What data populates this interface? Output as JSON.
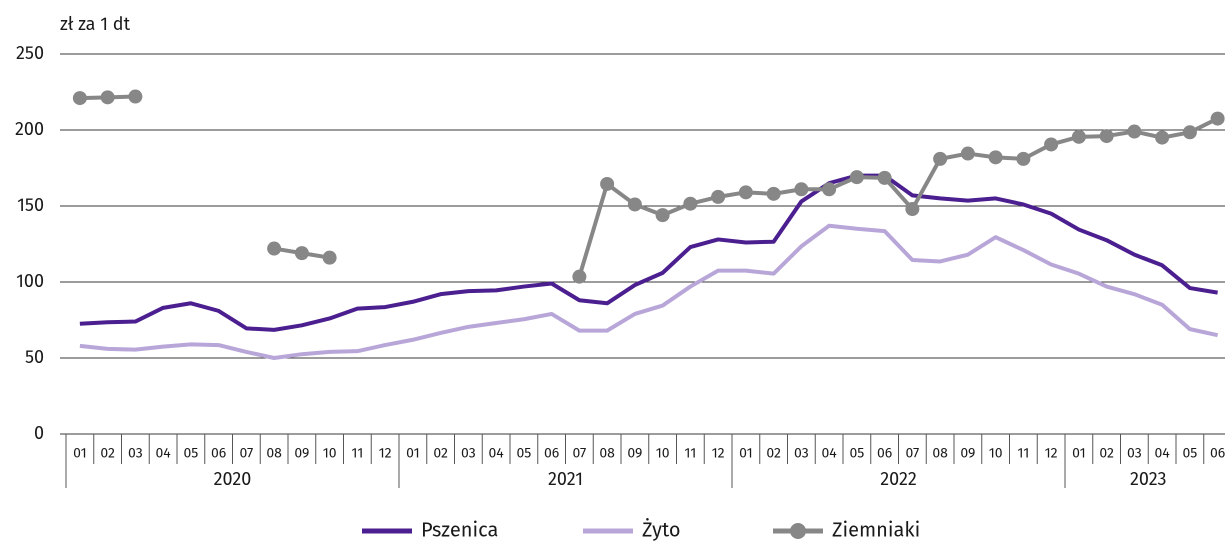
{
  "chart_data": {
    "type": "line",
    "y_unit": "zł za 1 dt",
    "categories": [
      "01",
      "02",
      "03",
      "04",
      "05",
      "06",
      "07",
      "08",
      "09",
      "10",
      "11",
      "12",
      "01",
      "02",
      "03",
      "04",
      "05",
      "06",
      "07",
      "08",
      "09",
      "10",
      "11",
      "12",
      "01",
      "02",
      "03",
      "04",
      "05",
      "06",
      "07",
      "08",
      "09",
      "10",
      "11",
      "12",
      "01",
      "02",
      "03",
      "04",
      "05",
      "06"
    ],
    "years": [
      "2020",
      "2021",
      "2022",
      "2023"
    ],
    "series": [
      {
        "name": "Pszenica",
        "color": "#4b1f8f",
        "marker": false,
        "values": [
          72.5,
          73.5,
          74,
          83,
          86,
          81,
          69.5,
          68.5,
          71.5,
          76,
          82.5,
          83.5,
          87,
          92,
          94,
          94.5,
          97,
          99,
          88,
          86,
          98,
          106,
          123,
          128,
          126,
          126.5,
          153,
          165,
          170,
          170,
          157,
          155,
          153.5,
          155,
          151,
          145,
          134.5,
          127.5,
          118,
          111,
          96,
          93
        ]
      },
      {
        "name": "Żyto",
        "color": "#b8a6d9",
        "marker": false,
        "values": [
          58,
          56,
          55.5,
          57.5,
          59,
          58.5,
          54,
          50,
          52.5,
          54,
          54.5,
          58.5,
          62,
          66.5,
          70.5,
          73,
          75.5,
          79,
          68,
          68,
          79,
          84.5,
          97,
          107.5,
          107.5,
          105.5,
          123.5,
          137,
          135,
          133.5,
          114.5,
          113.5,
          118,
          129.5,
          121,
          111.5,
          105.5,
          97,
          92,
          85,
          69,
          65
        ]
      },
      {
        "name": "Ziemniaki",
        "color": "#878787",
        "marker": true,
        "values": [
          221,
          221.5,
          222,
          null,
          null,
          null,
          null,
          122,
          119,
          116,
          null,
          null,
          null,
          null,
          null,
          null,
          null,
          null,
          103.5,
          164.5,
          151,
          144,
          151.5,
          156,
          159,
          158,
          161,
          161,
          169,
          168.5,
          148,
          181,
          184.5,
          182,
          181,
          190.5,
          195.5,
          196,
          199,
          195,
          198.5,
          207.5
        ]
      }
    ],
    "ylim": [
      0,
      250
    ],
    "yticks": [
      0,
      50,
      100,
      150,
      200,
      250
    ],
    "grid": true,
    "legend": "bottom"
  }
}
